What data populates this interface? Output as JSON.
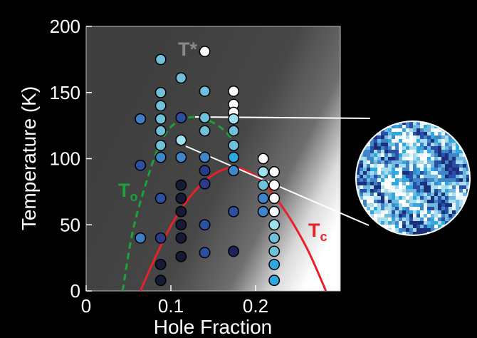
{
  "chart_data": {
    "type": "scatter",
    "xlabel": "Hole Fraction",
    "ylabel": "Temperature (K)",
    "xlim": [
      0,
      0.3
    ],
    "ylim": [
      0,
      200
    ],
    "xticks": [
      0,
      0.1,
      0.2
    ],
    "xtick_labels": [
      "0",
      "0.1",
      "0.2"
    ],
    "yticks": [
      0,
      50,
      100,
      150,
      200
    ],
    "ytick_labels": [
      "0",
      "50",
      "100",
      "150",
      "200"
    ],
    "annotations": {
      "tstar": "T*",
      "to_main": "T",
      "to_sub": "o",
      "tc_main": "T",
      "tc_sub": "c"
    },
    "colors": {
      "tc_curve": "#e8202a",
      "to_curve": "#1aa33a",
      "tstar_label": "#8a8a8a",
      "inset_line": "#ffffff"
    },
    "points": [
      {
        "x": 0.064,
        "y": 130,
        "color": "#3d7ec4"
      },
      {
        "x": 0.064,
        "y": 95,
        "color": "#2c4fa0"
      },
      {
        "x": 0.064,
        "y": 40,
        "color": "#3d7ec4"
      },
      {
        "x": 0.088,
        "y": 175,
        "color": "#6fc0d8"
      },
      {
        "x": 0.088,
        "y": 150,
        "color": "#6fc0d8"
      },
      {
        "x": 0.088,
        "y": 140,
        "color": "#6fc0d8"
      },
      {
        "x": 0.088,
        "y": 130,
        "color": "#6fc0d8"
      },
      {
        "x": 0.088,
        "y": 121,
        "color": "#6fc0d8"
      },
      {
        "x": 0.088,
        "y": 110,
        "color": "#6fc0d8"
      },
      {
        "x": 0.088,
        "y": 101,
        "color": "#3f86c9"
      },
      {
        "x": 0.088,
        "y": 70,
        "color": "#2c4fa0"
      },
      {
        "x": 0.088,
        "y": 40,
        "color": "#2a3c88"
      },
      {
        "x": 0.088,
        "y": 20,
        "color": "#151a35"
      },
      {
        "x": 0.088,
        "y": 8,
        "color": "#151a35"
      },
      {
        "x": 0.112,
        "y": 161,
        "color": "#6fc0d8"
      },
      {
        "x": 0.112,
        "y": 131,
        "color": "#2c4fa0"
      },
      {
        "x": 0.112,
        "y": 114,
        "color": "#9fe0ee"
      },
      {
        "x": 0.112,
        "y": 101,
        "color": "#3f86c9"
      },
      {
        "x": 0.112,
        "y": 80,
        "color": "#151a35"
      },
      {
        "x": 0.112,
        "y": 70,
        "color": "#151a35"
      },
      {
        "x": 0.112,
        "y": 60,
        "color": "#151a35"
      },
      {
        "x": 0.112,
        "y": 50,
        "color": "#151a35"
      },
      {
        "x": 0.112,
        "y": 40,
        "color": "#151a35"
      },
      {
        "x": 0.112,
        "y": 26,
        "color": "#151a35"
      },
      {
        "x": 0.14,
        "y": 181,
        "color": "#ffffff"
      },
      {
        "x": 0.14,
        "y": 151,
        "color": "#6fc0d8"
      },
      {
        "x": 0.14,
        "y": 131,
        "color": "#6fc0d8"
      },
      {
        "x": 0.14,
        "y": 121,
        "color": "#6fc0d8"
      },
      {
        "x": 0.14,
        "y": 101,
        "color": "#3f86c9"
      },
      {
        "x": 0.14,
        "y": 91,
        "color": "#2a3c88"
      },
      {
        "x": 0.14,
        "y": 81,
        "color": "#2a3c88"
      },
      {
        "x": 0.14,
        "y": 50,
        "color": "#2c4fa0"
      },
      {
        "x": 0.14,
        "y": 29,
        "color": "#2c4fa0"
      },
      {
        "x": 0.174,
        "y": 151,
        "color": "#ffffff"
      },
      {
        "x": 0.174,
        "y": 141,
        "color": "#ffffff"
      },
      {
        "x": 0.174,
        "y": 135,
        "color": "#ffffff"
      },
      {
        "x": 0.174,
        "y": 130,
        "color": "#9fe0ee"
      },
      {
        "x": 0.174,
        "y": 121,
        "color": "#6fc0d8"
      },
      {
        "x": 0.174,
        "y": 110,
        "color": "#6fc0d8"
      },
      {
        "x": 0.174,
        "y": 101,
        "color": "#2fa8e0"
      },
      {
        "x": 0.174,
        "y": 91,
        "color": "#3f86c9"
      },
      {
        "x": 0.174,
        "y": 60,
        "color": "#2c4fa0"
      },
      {
        "x": 0.174,
        "y": 30,
        "color": "#1c2460"
      },
      {
        "x": 0.209,
        "y": 100,
        "color": "#ffffff"
      },
      {
        "x": 0.209,
        "y": 90,
        "color": "#9fe0ee"
      },
      {
        "x": 0.209,
        "y": 80,
        "color": "#6fc0d8"
      },
      {
        "x": 0.209,
        "y": 70,
        "color": "#3f86c9"
      },
      {
        "x": 0.209,
        "y": 60,
        "color": "#3f86c9"
      },
      {
        "x": 0.222,
        "y": 90,
        "color": "#ffffff"
      },
      {
        "x": 0.222,
        "y": 80,
        "color": "#ffffff"
      },
      {
        "x": 0.222,
        "y": 70,
        "color": "#ffffff"
      },
      {
        "x": 0.222,
        "y": 60,
        "color": "#ffffff"
      },
      {
        "x": 0.222,
        "y": 50,
        "color": "#9fe0ee"
      },
      {
        "x": 0.222,
        "y": 40,
        "color": "#6fc0d8"
      },
      {
        "x": 0.222,
        "y": 30,
        "color": "#6fc0d8"
      },
      {
        "x": 0.222,
        "y": 20,
        "color": "#2fa8e0"
      },
      {
        "x": 0.222,
        "y": 8,
        "color": "#2fa8e0"
      }
    ],
    "tc_curve": [
      [
        0.064,
        0
      ],
      [
        0.085,
        30
      ],
      [
        0.11,
        60
      ],
      [
        0.14,
        83
      ],
      [
        0.17,
        93
      ],
      [
        0.2,
        87
      ],
      [
        0.23,
        65
      ],
      [
        0.26,
        33
      ],
      [
        0.283,
        0
      ]
    ],
    "to_curve": [
      [
        0.043,
        0
      ],
      [
        0.055,
        45
      ],
      [
        0.07,
        80
      ],
      [
        0.085,
        108
      ],
      [
        0.1,
        124
      ],
      [
        0.12,
        131
      ],
      [
        0.14,
        130
      ],
      [
        0.16,
        123
      ],
      [
        0.175,
        113
      ]
    ]
  }
}
